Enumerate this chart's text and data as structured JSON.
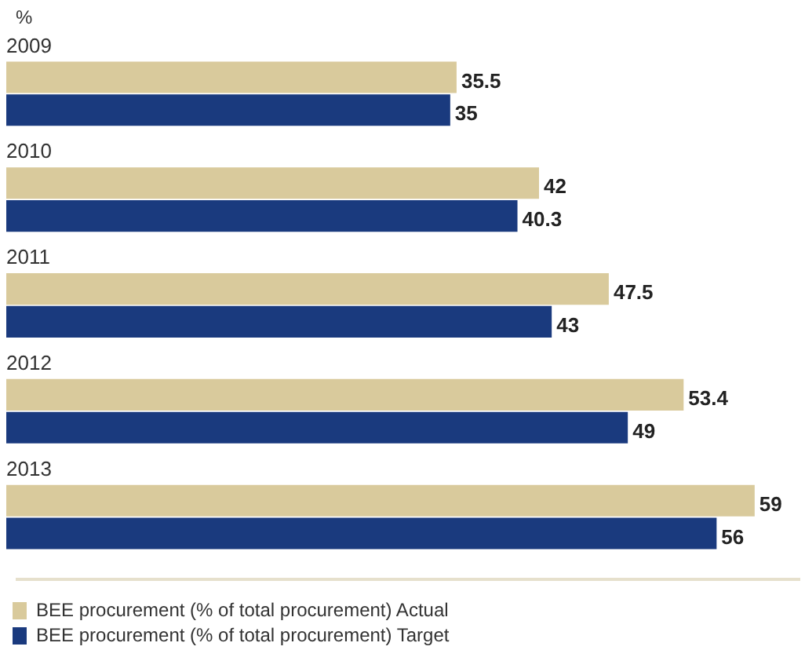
{
  "chart_data": {
    "type": "bar",
    "orientation": "horizontal",
    "xlabel": "%",
    "categories": [
      "2009",
      "2010",
      "2011",
      "2012",
      "2013"
    ],
    "series": [
      {
        "name": "BEE procurement (% of total procurement) Actual",
        "color": "#d9ca9c",
        "values": [
          35.5,
          42,
          47.5,
          53.4,
          59
        ]
      },
      {
        "name": "BEE procurement (% of total procurement) Target",
        "color": "#1a3a7e",
        "values": [
          35,
          40.3,
          43,
          49,
          56
        ]
      }
    ],
    "data_labels": true,
    "legend": "bottom left"
  }
}
